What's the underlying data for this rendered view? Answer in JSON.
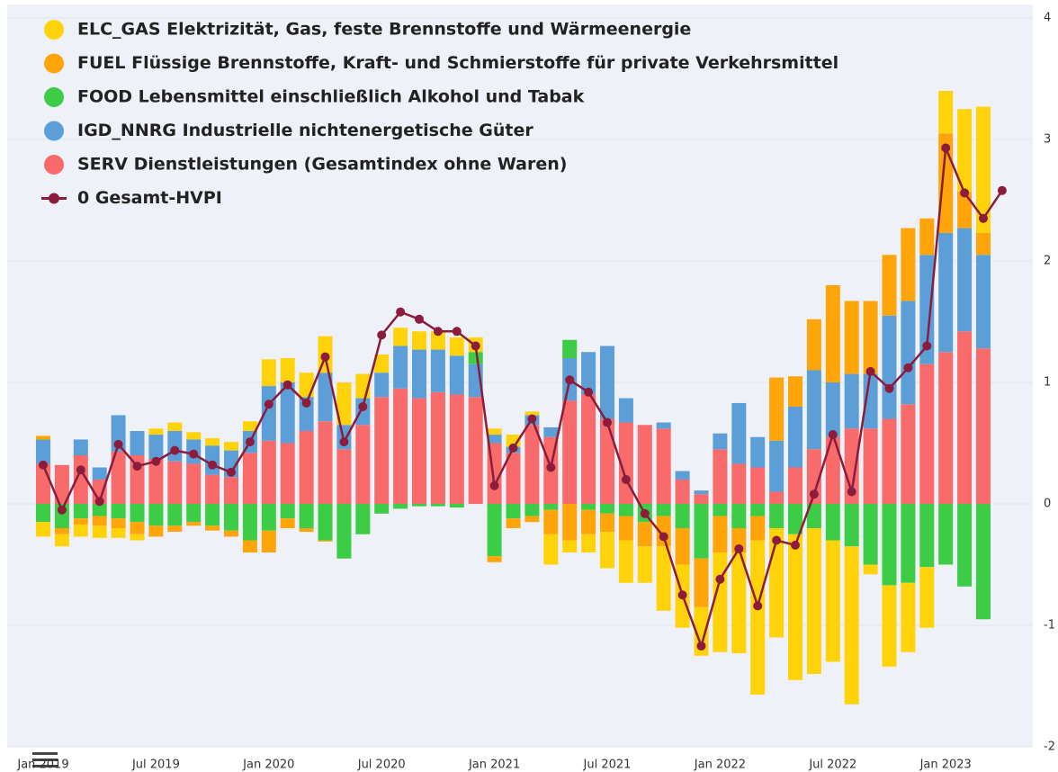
{
  "chart_data": {
    "type": "bar",
    "stacked": true,
    "legend": "upper left",
    "categories": [
      "Jan 2019",
      null,
      null,
      null,
      null,
      null,
      "Jul 2019",
      null,
      null,
      null,
      null,
      null,
      "Jan 2020",
      null,
      null,
      null,
      null,
      null,
      "Jul 2020",
      null,
      null,
      null,
      null,
      null,
      "Jan 2021",
      null,
      null,
      null,
      null,
      null,
      "Jul 2021",
      null,
      null,
      null,
      null,
      null,
      "Jan 2022",
      null,
      null,
      null,
      null,
      null,
      "Jul 2022",
      null,
      null,
      null,
      null,
      null,
      "Jan 2023",
      null,
      null,
      null
    ],
    "ylim": [
      -2,
      4
    ],
    "yticks": [
      -2,
      -1,
      0,
      1,
      2,
      3,
      4
    ],
    "series": [
      {
        "name": "ELC_GAS Elektrizität, Gas, feste Brennstoffe und Wärmeenergie",
        "color": "#ffd20a",
        "values": [
          -0.12,
          -0.1,
          -0.1,
          -0.1,
          -0.08,
          -0.05,
          0.05,
          0.07,
          0.06,
          0.06,
          0.07,
          0.08,
          0.22,
          0.2,
          0.2,
          0.3,
          0.35,
          0.2,
          0.15,
          0.15,
          0.15,
          0.15,
          0.15,
          0.12,
          0.05,
          0.1,
          0.03,
          -0.25,
          -0.1,
          -0.15,
          -0.3,
          -0.35,
          -0.3,
          -0.53,
          -0.52,
          -0.4,
          -0.82,
          -0.83,
          -1.27,
          -0.9,
          -1.2,
          -1.2,
          -1.0,
          -1.3,
          -0.08,
          -0.67,
          -0.57,
          -0.5,
          0.35,
          0.68,
          1.04,
          null
        ]
      },
      {
        "name": "FUEL Flüssige Brennstoffe, Kraft- und Schmierstoffe für private Verkehrsmittel",
        "color": "#ffa50a",
        "values": [
          0.03,
          -0.05,
          -0.05,
          -0.08,
          -0.08,
          -0.1,
          -0.09,
          -0.05,
          -0.03,
          -0.04,
          -0.05,
          -0.1,
          -0.18,
          -0.08,
          -0.03,
          -0.01,
          0,
          0,
          0,
          0,
          0,
          0,
          0,
          0,
          -0.05,
          -0.08,
          -0.05,
          -0.2,
          -0.3,
          -0.2,
          -0.15,
          -0.2,
          -0.2,
          -0.25,
          -0.3,
          -0.4,
          -0.3,
          -0.2,
          -0.2,
          0.52,
          0.25,
          0.42,
          0.8,
          0.6,
          0.6,
          0.5,
          0.6,
          0.3,
          0.82,
          0.3,
          0.18,
          null
        ]
      },
      {
        "name": "FOOD Lebensmittel einschließlich Alkohol und Tabak",
        "color": "#3ccc46",
        "values": [
          -0.15,
          -0.2,
          -0.12,
          -0.1,
          -0.12,
          -0.15,
          -0.18,
          -0.18,
          -0.15,
          -0.18,
          -0.22,
          -0.3,
          -0.22,
          -0.12,
          -0.2,
          -0.3,
          -0.45,
          -0.25,
          -0.08,
          -0.04,
          -0.02,
          -0.02,
          -0.03,
          0.1,
          -0.43,
          -0.12,
          -0.1,
          -0.05,
          0.15,
          -0.05,
          -0.08,
          -0.1,
          -0.15,
          -0.1,
          -0.2,
          -0.45,
          -0.1,
          -0.2,
          -0.1,
          -0.2,
          -0.25,
          -0.2,
          -0.3,
          -0.35,
          -0.5,
          -0.67,
          -0.65,
          -0.52,
          -0.5,
          -0.68,
          -0.95,
          null
        ]
      },
      {
        "name": "IGD_NNRG Industrielle nichtenergetische Güter",
        "color": "#5c9fd8",
        "values": [
          0.2,
          0,
          0.13,
          0.1,
          0.3,
          0.2,
          0.2,
          0.25,
          0.2,
          0.24,
          0.22,
          0.18,
          0.45,
          0.5,
          0.28,
          0.4,
          0.2,
          0.22,
          0.2,
          0.35,
          0.4,
          0.35,
          0.32,
          0.27,
          0.07,
          0.05,
          0.08,
          0.08,
          0.35,
          0.35,
          0.6,
          0.2,
          0,
          0.05,
          0.07,
          0.03,
          0.13,
          0.5,
          0.25,
          0.42,
          0.5,
          0.65,
          0.45,
          0.45,
          0.45,
          0.85,
          0.85,
          0.9,
          0.98,
          0.85,
          0.77,
          null
        ]
      },
      {
        "name": "SERV Dienstleistungen (Gesamtindex ohne Waren)",
        "color": "#f96b6b",
        "values": [
          0.33,
          0.32,
          0.4,
          0.2,
          0.43,
          0.4,
          0.37,
          0.35,
          0.33,
          0.24,
          0.22,
          0.42,
          0.52,
          0.5,
          0.6,
          0.68,
          0.45,
          0.65,
          0.88,
          0.95,
          0.87,
          0.92,
          0.9,
          0.88,
          0.5,
          0.42,
          0.65,
          0.55,
          0.85,
          0.9,
          0.7,
          0.67,
          0.65,
          0.62,
          0.2,
          0.08,
          0.45,
          0.33,
          0.3,
          0.1,
          0.3,
          0.45,
          0.55,
          0.62,
          0.62,
          0.7,
          0.82,
          1.15,
          1.25,
          1.42,
          1.28,
          null
        ]
      },
      {
        "name": "0 Gesamt-HVPI",
        "color": "#8c1c3c",
        "type": "line",
        "values": [
          0.32,
          -0.05,
          0.28,
          0.02,
          0.49,
          0.31,
          0.35,
          0.44,
          0.41,
          0.32,
          0.26,
          0.51,
          0.82,
          0.98,
          0.83,
          1.21,
          0.51,
          0.8,
          1.39,
          1.58,
          1.52,
          1.42,
          1.42,
          1.3,
          0.15,
          0.46,
          0.7,
          0.3,
          1.02,
          0.92,
          0.67,
          0.2,
          -0.08,
          -0.27,
          -0.75,
          -1.17,
          -0.62,
          -0.37,
          -0.84,
          -0.3,
          -0.34,
          0.08,
          0.57,
          0.1,
          1.09,
          0.95,
          1.12,
          1.3,
          2.93,
          2.56,
          2.35,
          2.58
        ]
      }
    ]
  }
}
